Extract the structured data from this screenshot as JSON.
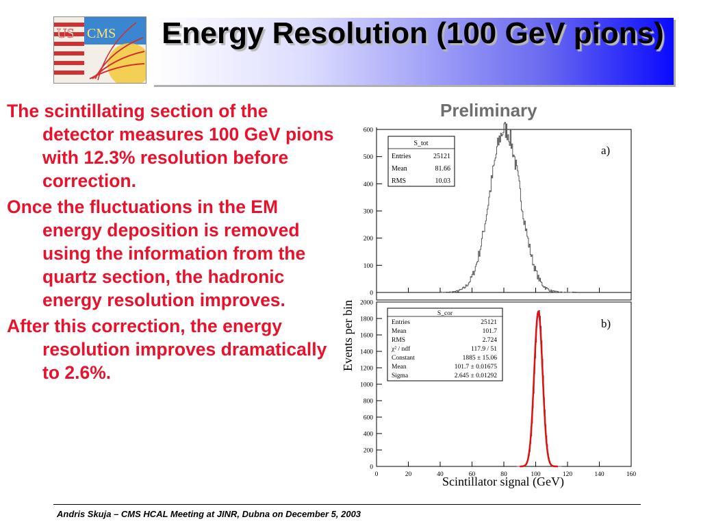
{
  "slide": {
    "title": "Energy Resolution (100 GeV pions)",
    "logo_text_us": "US",
    "logo_text_cms": "CMS",
    "paragraphs": [
      "The scintillating section of the detector measures 100 GeV pions with 12.3% resolution before correction.",
      "Once the fluctuations in the EM energy deposition is removed using the information from the quartz section, the hadronic energy resolution improves.",
      "After this correction, the energy resolution improves dramatically to 2.6%."
    ],
    "preliminary_label": "Preliminary",
    "footer": "Andris Skuja – CMS HCAL Meeting at JINR, Dubna on December 5, 2003"
  },
  "colors": {
    "body_text": "#e8122c",
    "histogram": "#555555",
    "fit_curve": "#e01010",
    "title_gradient_end": "#0a0aff"
  },
  "chart_data": [
    {
      "type": "histogram",
      "panel_label": "a)",
      "xlim": [
        0,
        160
      ],
      "ylim": [
        0,
        600
      ],
      "yticks": [
        0,
        100,
        200,
        300,
        400,
        500,
        600
      ],
      "stats_title": "S_tot",
      "stats": [
        {
          "label": "Entries",
          "value": "25121"
        },
        {
          "label": "Mean",
          "value": "81.66"
        },
        {
          "label": "RMS",
          "value": "10.03"
        }
      ],
      "mean": 81.66,
      "rms": 10.03,
      "peak": 600
    },
    {
      "type": "histogram",
      "panel_label": "b)",
      "xlim": [
        0,
        160
      ],
      "ylim": [
        0,
        2000
      ],
      "yticks": [
        0,
        200,
        400,
        600,
        800,
        1000,
        1200,
        1400,
        1600,
        1800,
        2000
      ],
      "xticks": [
        0,
        20,
        40,
        60,
        80,
        100,
        120,
        140,
        160
      ],
      "stats_title": "S_cor",
      "stats": [
        {
          "label": "Entries",
          "value": "25121"
        },
        {
          "label": "Mean",
          "value": "101.7"
        },
        {
          "label": "RMS",
          "value": "2.724"
        },
        {
          "label": "χ² / ndf",
          "value": "117.9 / 51"
        },
        {
          "label": "Constant",
          "value": "1885 ± 15.06"
        },
        {
          "label": "Mean",
          "value": "101.7 ± 0.01675"
        },
        {
          "label": "Sigma",
          "value": "2.645 ± 0.01292"
        }
      ],
      "fit": {
        "constant": 1885,
        "mean": 101.7,
        "sigma": 2.645
      },
      "xlabel": "Scintillator signal (GeV)",
      "ylabel": "Events per bin"
    }
  ]
}
